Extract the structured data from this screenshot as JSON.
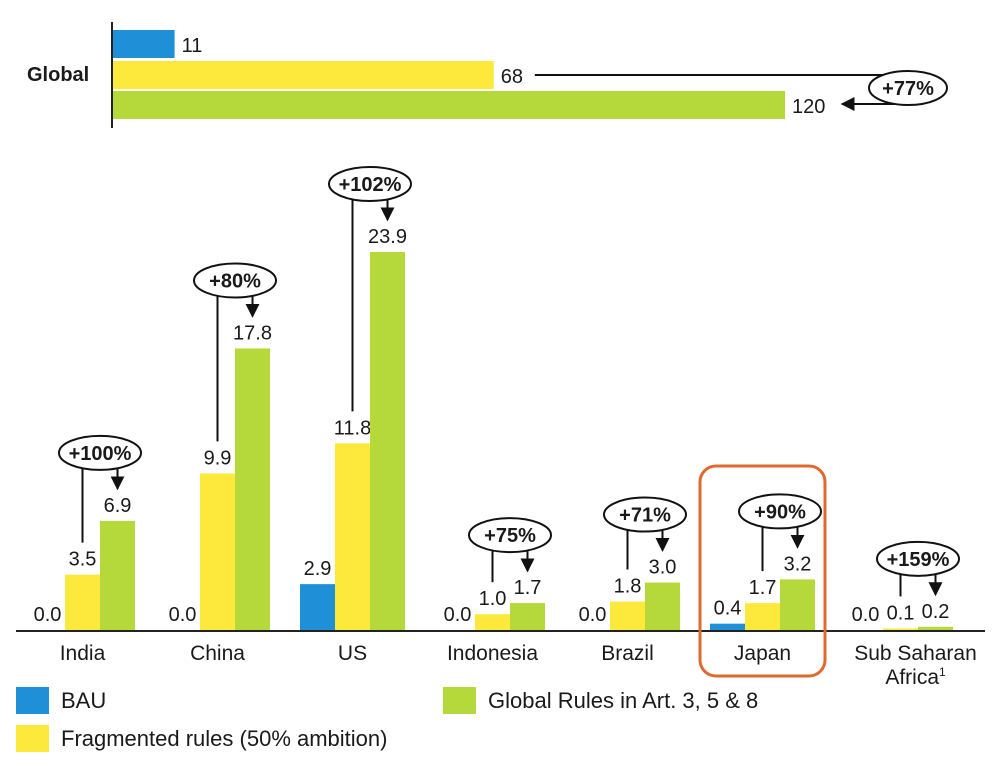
{
  "chart_data": [
    {
      "type": "bar",
      "orientation": "horizontal",
      "group_label": "Global",
      "series": [
        {
          "name": "BAU",
          "value": 11
        },
        {
          "name": "Fragmented rules (50% ambition)",
          "value": 68
        },
        {
          "name": "Global Rules in Art. 3, 5 & 8",
          "value": 120
        }
      ],
      "change_label": "+77%",
      "xlim": [
        0,
        120
      ]
    },
    {
      "type": "bar",
      "orientation": "vertical",
      "categories": [
        "India",
        "China",
        "US",
        "Indonesia",
        "Brazil",
        "Japan",
        "Sub Saharan Africa"
      ],
      "category_footnote": "1",
      "series": [
        {
          "name": "BAU",
          "values": [
            0.0,
            0.0,
            2.9,
            0.0,
            0.0,
            0.4,
            0.0
          ]
        },
        {
          "name": "Fragmented rules (50% ambition)",
          "values": [
            3.5,
            9.9,
            11.8,
            1.0,
            1.8,
            1.7,
            0.1
          ]
        },
        {
          "name": "Global Rules in Art. 3, 5 & 8",
          "values": [
            6.9,
            17.8,
            23.9,
            1.7,
            3.0,
            3.2,
            0.2
          ]
        }
      ],
      "value_labels": [
        [
          "0.0",
          "3.5",
          "6.9"
        ],
        [
          "0.0",
          "9.9",
          "17.8"
        ],
        [
          "2.9",
          "11.8",
          "23.9"
        ],
        [
          "0.0",
          "1.0",
          "1.7"
        ],
        [
          "0.0",
          "1.8",
          "3.0"
        ],
        [
          "0.4",
          "1.7",
          "3.2"
        ],
        [
          "0.0",
          "0.1",
          "0.2"
        ]
      ],
      "change_labels": [
        "+100%",
        "+80%",
        "+102%",
        "+75%",
        "+71%",
        "+90%",
        "+159%"
      ],
      "highlighted_category": "Japan",
      "ylim": [
        0,
        23.9
      ]
    }
  ],
  "legend": [
    {
      "label": "BAU",
      "color": "#1f8fd8"
    },
    {
      "label": "Global Rules in Art. 3, 5 & 8",
      "color": "#b5d93b"
    },
    {
      "label": "Fragmented rules (50% ambition)",
      "color": "#fde93c"
    }
  ],
  "colors": {
    "bau": "#1f8fd8",
    "fragmented": "#fde93c",
    "global_rules": "#b5d93b",
    "highlight": "#e06a2e",
    "axis": "#222222"
  }
}
